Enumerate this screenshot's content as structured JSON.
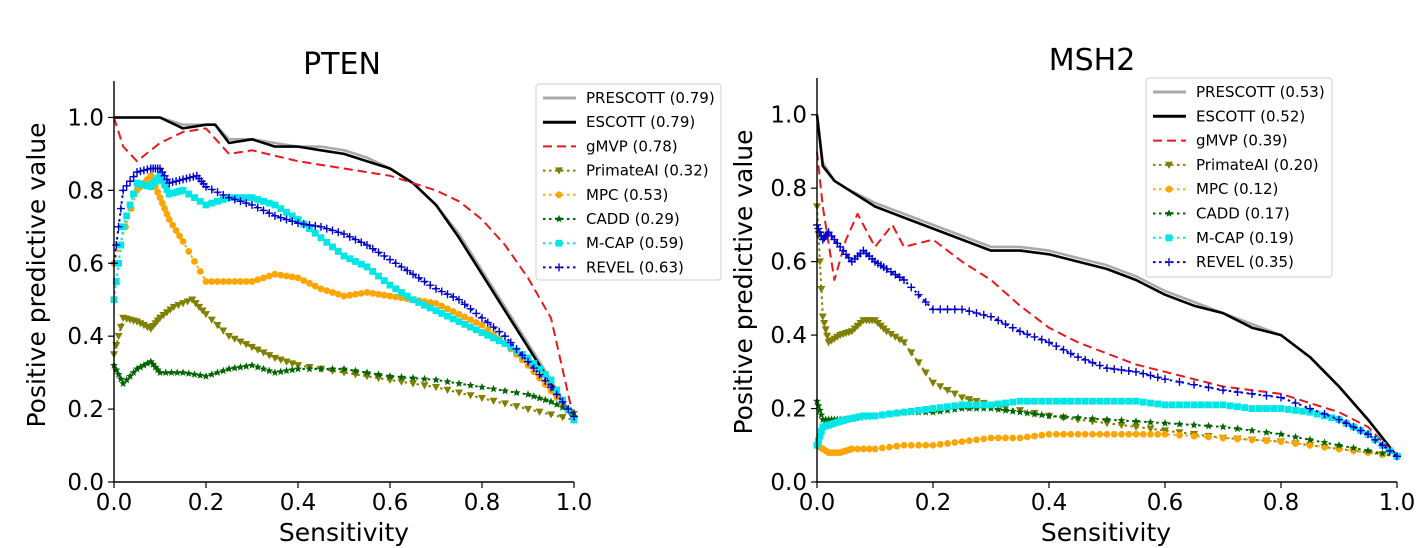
{
  "chart_data": [
    {
      "type": "line",
      "title": "PTEN",
      "xlabel": "Sensitivity",
      "ylabel": "Positive predictive value",
      "xlim": [
        0.0,
        1.0
      ],
      "ylim": [
        0.0,
        1.1
      ],
      "xticks": [
        "0.0",
        "0.2",
        "0.4",
        "0.6",
        "0.8",
        "1.0"
      ],
      "yticks": [
        "0.0",
        "0.2",
        "0.4",
        "0.6",
        "0.8",
        "1.0"
      ],
      "legend_position": "top-right",
      "series": [
        {
          "name": "PRESCOTT",
          "auc_label": "(0.79)",
          "color": "#aaaaaa",
          "style": "solid",
          "marker": "none",
          "x": [
            0.0,
            0.02,
            0.1,
            0.15,
            0.2,
            0.22,
            0.25,
            0.3,
            0.35,
            0.4,
            0.45,
            0.5,
            0.55,
            0.6,
            0.65,
            0.7,
            0.75,
            0.8,
            0.85,
            0.9,
            0.95,
            1.0
          ],
          "y": [
            1.0,
            1.0,
            1.0,
            0.98,
            0.98,
            0.98,
            0.94,
            0.94,
            0.93,
            0.92,
            0.92,
            0.91,
            0.89,
            0.86,
            0.82,
            0.76,
            0.68,
            0.58,
            0.48,
            0.38,
            0.28,
            0.17
          ]
        },
        {
          "name": "ESCOTT",
          "auc_label": "(0.79)",
          "color": "#000000",
          "style": "solid",
          "marker": "none",
          "x": [
            0.0,
            0.02,
            0.1,
            0.15,
            0.2,
            0.22,
            0.25,
            0.3,
            0.35,
            0.4,
            0.45,
            0.5,
            0.55,
            0.6,
            0.65,
            0.7,
            0.75,
            0.8,
            0.85,
            0.9,
            0.95,
            1.0
          ],
          "y": [
            1.0,
            1.0,
            1.0,
            0.97,
            0.98,
            0.98,
            0.93,
            0.94,
            0.92,
            0.92,
            0.91,
            0.9,
            0.88,
            0.86,
            0.82,
            0.76,
            0.67,
            0.57,
            0.47,
            0.37,
            0.27,
            0.17
          ]
        },
        {
          "name": "gMVP",
          "auc_label": "(0.78)",
          "color": "#e41a1c",
          "style": "dashed",
          "marker": "none",
          "x": [
            0.0,
            0.02,
            0.05,
            0.1,
            0.15,
            0.2,
            0.25,
            0.3,
            0.4,
            0.5,
            0.6,
            0.65,
            0.7,
            0.75,
            0.8,
            0.85,
            0.9,
            0.95,
            1.0
          ],
          "y": [
            1.0,
            0.92,
            0.88,
            0.93,
            0.96,
            0.97,
            0.9,
            0.91,
            0.88,
            0.86,
            0.84,
            0.82,
            0.8,
            0.77,
            0.72,
            0.65,
            0.56,
            0.45,
            0.17
          ]
        },
        {
          "name": "PrimateAI",
          "auc_label": "(0.32)",
          "color": "#808000",
          "style": "dotted",
          "marker": "triangle",
          "x": [
            0.0,
            0.02,
            0.05,
            0.08,
            0.1,
            0.13,
            0.17,
            0.2,
            0.25,
            0.3,
            0.35,
            0.4,
            0.5,
            0.6,
            0.7,
            0.8,
            0.9,
            1.0
          ],
          "y": [
            0.35,
            0.45,
            0.44,
            0.42,
            0.45,
            0.48,
            0.5,
            0.46,
            0.4,
            0.37,
            0.34,
            0.32,
            0.3,
            0.28,
            0.26,
            0.23,
            0.2,
            0.17
          ]
        },
        {
          "name": "MPC",
          "auc_label": "(0.53)",
          "color": "#ffa500",
          "style": "dotted",
          "marker": "circle",
          "x": [
            0.0,
            0.05,
            0.08,
            0.1,
            0.12,
            0.15,
            0.2,
            0.25,
            0.3,
            0.35,
            0.4,
            0.45,
            0.5,
            0.55,
            0.6,
            0.65,
            0.7,
            0.75,
            0.8,
            0.85,
            0.9,
            0.95,
            1.0
          ],
          "y": [
            0.6,
            0.8,
            0.84,
            0.78,
            0.72,
            0.66,
            0.55,
            0.55,
            0.55,
            0.57,
            0.56,
            0.53,
            0.51,
            0.52,
            0.51,
            0.5,
            0.49,
            0.46,
            0.43,
            0.38,
            0.32,
            0.25,
            0.18
          ]
        },
        {
          "name": "CADD",
          "auc_label": "(0.29)",
          "color": "#006400",
          "style": "dotted",
          "marker": "star",
          "x": [
            0.0,
            0.02,
            0.05,
            0.08,
            0.1,
            0.15,
            0.2,
            0.25,
            0.3,
            0.35,
            0.4,
            0.5,
            0.6,
            0.7,
            0.8,
            0.9,
            0.95,
            1.0
          ],
          "y": [
            0.32,
            0.27,
            0.31,
            0.33,
            0.3,
            0.3,
            0.29,
            0.31,
            0.32,
            0.3,
            0.31,
            0.31,
            0.29,
            0.28,
            0.26,
            0.24,
            0.22,
            0.19
          ]
        },
        {
          "name": "M-CAP",
          "auc_label": "(0.59)",
          "color": "#00e5e5",
          "style": "dotted",
          "marker": "square",
          "x": [
            0.0,
            0.02,
            0.05,
            0.08,
            0.1,
            0.12,
            0.15,
            0.2,
            0.25,
            0.3,
            0.35,
            0.4,
            0.45,
            0.5,
            0.55,
            0.6,
            0.65,
            0.7,
            0.75,
            0.8,
            0.85,
            0.9,
            0.95,
            1.0
          ],
          "y": [
            0.5,
            0.7,
            0.82,
            0.81,
            0.84,
            0.79,
            0.8,
            0.76,
            0.78,
            0.78,
            0.76,
            0.72,
            0.67,
            0.62,
            0.59,
            0.54,
            0.5,
            0.47,
            0.44,
            0.41,
            0.38,
            0.34,
            0.28,
            0.17
          ]
        },
        {
          "name": "REVEL",
          "auc_label": "(0.63)",
          "color": "#0000cd",
          "style": "dotted",
          "marker": "plus",
          "x": [
            0.0,
            0.02,
            0.05,
            0.08,
            0.1,
            0.12,
            0.15,
            0.18,
            0.2,
            0.25,
            0.3,
            0.35,
            0.4,
            0.45,
            0.5,
            0.55,
            0.6,
            0.65,
            0.7,
            0.75,
            0.8,
            0.85,
            0.9,
            0.95,
            1.0
          ],
          "y": [
            0.6,
            0.8,
            0.85,
            0.86,
            0.86,
            0.82,
            0.83,
            0.84,
            0.81,
            0.78,
            0.76,
            0.73,
            0.71,
            0.7,
            0.68,
            0.65,
            0.61,
            0.57,
            0.53,
            0.5,
            0.45,
            0.4,
            0.33,
            0.26,
            0.18
          ]
        }
      ]
    },
    {
      "type": "line",
      "title": "MSH2",
      "xlabel": "Sensitivity",
      "ylabel": "Positive predictive value",
      "xlim": [
        0.0,
        1.0
      ],
      "ylim": [
        0.0,
        1.1
      ],
      "xticks": [
        "0.0",
        "0.2",
        "0.4",
        "0.6",
        "0.8",
        "1.0"
      ],
      "yticks": [
        "0.0",
        "0.2",
        "0.4",
        "0.6",
        "0.8",
        "1.0"
      ],
      "legend_position": "top-right",
      "series": [
        {
          "name": "PRESCOTT",
          "auc_label": "(0.53)",
          "color": "#aaaaaa",
          "style": "solid",
          "marker": "none",
          "x": [
            0.0,
            0.01,
            0.03,
            0.05,
            0.1,
            0.15,
            0.2,
            0.25,
            0.3,
            0.35,
            0.4,
            0.45,
            0.5,
            0.55,
            0.6,
            0.65,
            0.7,
            0.75,
            0.8,
            0.85,
            0.9,
            0.95,
            1.0
          ],
          "y": [
            1.0,
            0.87,
            0.82,
            0.8,
            0.76,
            0.73,
            0.7,
            0.67,
            0.64,
            0.64,
            0.63,
            0.61,
            0.59,
            0.56,
            0.52,
            0.49,
            0.46,
            0.43,
            0.4,
            0.34,
            0.26,
            0.17,
            0.07
          ]
        },
        {
          "name": "ESCOTT",
          "auc_label": "(0.52)",
          "color": "#000000",
          "style": "solid",
          "marker": "none",
          "x": [
            0.0,
            0.01,
            0.03,
            0.05,
            0.1,
            0.15,
            0.2,
            0.25,
            0.3,
            0.35,
            0.4,
            0.45,
            0.5,
            0.55,
            0.6,
            0.65,
            0.7,
            0.75,
            0.8,
            0.85,
            0.9,
            0.95,
            1.0
          ],
          "y": [
            1.0,
            0.86,
            0.82,
            0.8,
            0.75,
            0.72,
            0.69,
            0.66,
            0.63,
            0.63,
            0.62,
            0.6,
            0.58,
            0.55,
            0.51,
            0.48,
            0.46,
            0.42,
            0.4,
            0.34,
            0.26,
            0.17,
            0.07
          ]
        },
        {
          "name": "gMVP",
          "auc_label": "(0.39)",
          "color": "#e41a1c",
          "style": "dashed",
          "marker": "none",
          "x": [
            0.0,
            0.01,
            0.03,
            0.05,
            0.07,
            0.1,
            0.13,
            0.15,
            0.2,
            0.25,
            0.3,
            0.35,
            0.4,
            0.45,
            0.5,
            0.55,
            0.6,
            0.7,
            0.8,
            0.9,
            0.95,
            1.0
          ],
          "y": [
            0.9,
            0.75,
            0.55,
            0.66,
            0.73,
            0.64,
            0.7,
            0.64,
            0.66,
            0.6,
            0.55,
            0.48,
            0.42,
            0.38,
            0.35,
            0.32,
            0.3,
            0.26,
            0.24,
            0.19,
            0.15,
            0.07
          ]
        },
        {
          "name": "PrimateAI",
          "auc_label": "(0.20)",
          "color": "#808000",
          "style": "dotted",
          "marker": "triangle",
          "x": [
            0.0,
            0.01,
            0.02,
            0.04,
            0.06,
            0.08,
            0.1,
            0.12,
            0.15,
            0.2,
            0.25,
            0.3,
            0.4,
            0.5,
            0.6,
            0.7,
            0.8,
            0.9,
            1.0
          ],
          "y": [
            0.75,
            0.45,
            0.38,
            0.4,
            0.41,
            0.44,
            0.44,
            0.41,
            0.38,
            0.27,
            0.23,
            0.21,
            0.18,
            0.16,
            0.14,
            0.12,
            0.11,
            0.09,
            0.07
          ]
        },
        {
          "name": "MPC",
          "auc_label": "(0.12)",
          "color": "#ffa500",
          "style": "dotted",
          "marker": "circle",
          "x": [
            0.0,
            0.02,
            0.04,
            0.06,
            0.1,
            0.15,
            0.2,
            0.25,
            0.3,
            0.35,
            0.4,
            0.45,
            0.5,
            0.55,
            0.6,
            0.7,
            0.8,
            0.9,
            1.0
          ],
          "y": [
            0.1,
            0.08,
            0.08,
            0.09,
            0.09,
            0.1,
            0.1,
            0.11,
            0.12,
            0.12,
            0.13,
            0.13,
            0.13,
            0.13,
            0.13,
            0.12,
            0.11,
            0.09,
            0.07
          ]
        },
        {
          "name": "CADD",
          "auc_label": "(0.17)",
          "color": "#006400",
          "style": "dotted",
          "marker": "star",
          "x": [
            0.0,
            0.01,
            0.03,
            0.05,
            0.1,
            0.15,
            0.2,
            0.25,
            0.3,
            0.35,
            0.4,
            0.5,
            0.6,
            0.7,
            0.8,
            0.9,
            1.0
          ],
          "y": [
            0.22,
            0.17,
            0.17,
            0.17,
            0.18,
            0.19,
            0.19,
            0.2,
            0.2,
            0.19,
            0.18,
            0.17,
            0.16,
            0.15,
            0.13,
            0.1,
            0.07
          ]
        },
        {
          "name": "M-CAP",
          "auc_label": "(0.19)",
          "color": "#00e5e5",
          "style": "dotted",
          "marker": "square",
          "x": [
            0.0,
            0.01,
            0.03,
            0.05,
            0.08,
            0.1,
            0.15,
            0.2,
            0.25,
            0.3,
            0.35,
            0.4,
            0.45,
            0.5,
            0.55,
            0.6,
            0.65,
            0.7,
            0.75,
            0.8,
            0.85,
            0.9,
            0.95,
            1.0
          ],
          "y": [
            0.1,
            0.15,
            0.16,
            0.17,
            0.18,
            0.18,
            0.19,
            0.2,
            0.21,
            0.21,
            0.22,
            0.22,
            0.22,
            0.22,
            0.22,
            0.21,
            0.21,
            0.21,
            0.2,
            0.2,
            0.19,
            0.17,
            0.13,
            0.07
          ]
        },
        {
          "name": "REVEL",
          "auc_label": "(0.35)",
          "color": "#0000cd",
          "style": "dotted",
          "marker": "plus",
          "x": [
            0.0,
            0.01,
            0.02,
            0.04,
            0.06,
            0.08,
            0.1,
            0.12,
            0.15,
            0.2,
            0.25,
            0.3,
            0.35,
            0.4,
            0.45,
            0.5,
            0.55,
            0.6,
            0.7,
            0.8,
            0.9,
            0.95,
            1.0
          ],
          "y": [
            0.7,
            0.66,
            0.68,
            0.64,
            0.6,
            0.63,
            0.6,
            0.58,
            0.55,
            0.47,
            0.47,
            0.45,
            0.41,
            0.38,
            0.34,
            0.31,
            0.3,
            0.28,
            0.25,
            0.23,
            0.17,
            0.13,
            0.07
          ]
        }
      ]
    }
  ]
}
